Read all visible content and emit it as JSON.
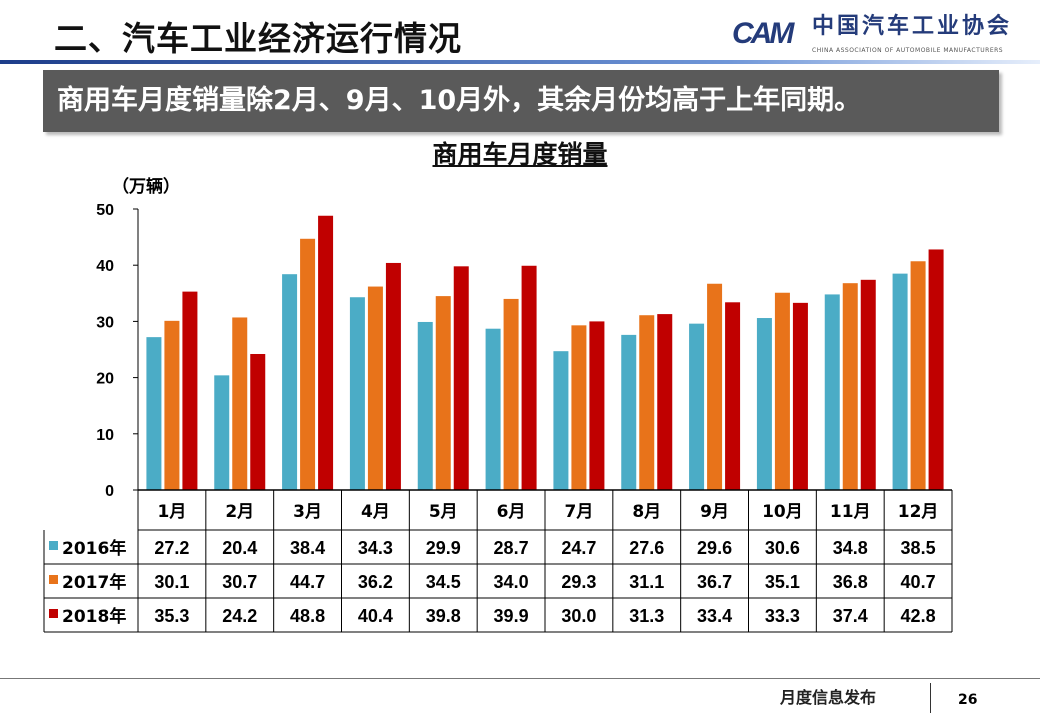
{
  "header": {
    "title": "二、汽车工业经济运行情况",
    "logo_cn": "中国汽车工业协会",
    "logo_en": "CHINA ASSOCIATION OF AUTOMOBILE MANUFACTURERS",
    "logo_mark": "CAM"
  },
  "banner": "商用车月度销量除2月、9月、10月外，其余月份均高于上年同期。",
  "footer": {
    "text": "月度信息发布",
    "page": "26"
  },
  "chart_data": {
    "type": "bar",
    "title": "商用车月度销量",
    "ylabel": "（万辆）",
    "ylim": [
      0,
      50
    ],
    "yticks": [
      "0",
      "10",
      "20",
      "30",
      "40",
      "50"
    ],
    "categories": [
      "1月",
      "2月",
      "3月",
      "4月",
      "5月",
      "6月",
      "7月",
      "8月",
      "9月",
      "10月",
      "11月",
      "12月"
    ],
    "series": [
      {
        "name": "2016年",
        "color": "#4bacc6",
        "values": [
          27.2,
          20.4,
          38.4,
          34.3,
          29.9,
          28.7,
          24.7,
          27.6,
          29.6,
          30.6,
          34.8,
          38.5
        ]
      },
      {
        "name": "2017年",
        "color": "#e8731a",
        "values": [
          30.1,
          30.7,
          44.7,
          36.2,
          34.5,
          34.0,
          29.3,
          31.1,
          36.7,
          35.1,
          36.8,
          40.7
        ]
      },
      {
        "name": "2018年",
        "color": "#c00000",
        "values": [
          35.3,
          24.2,
          48.8,
          40.4,
          39.8,
          39.9,
          30.0,
          31.3,
          33.4,
          33.3,
          37.4,
          42.8
        ]
      }
    ],
    "value_labels": [
      [
        "27.2",
        "20.4",
        "38.4",
        "34.3",
        "29.9",
        "28.7",
        "24.7",
        "27.6",
        "29.6",
        "30.6",
        "34.8",
        "38.5"
      ],
      [
        "30.1",
        "30.7",
        "44.7",
        "36.2",
        "34.5",
        "34.0",
        "29.3",
        "31.1",
        "36.7",
        "35.1",
        "36.8",
        "40.7"
      ],
      [
        "35.3",
        "24.2",
        "48.8",
        "40.4",
        "39.8",
        "39.9",
        "30.0",
        "31.3",
        "33.4",
        "33.3",
        "37.4",
        "42.8"
      ]
    ],
    "grid": false,
    "legend": "data-table"
  }
}
